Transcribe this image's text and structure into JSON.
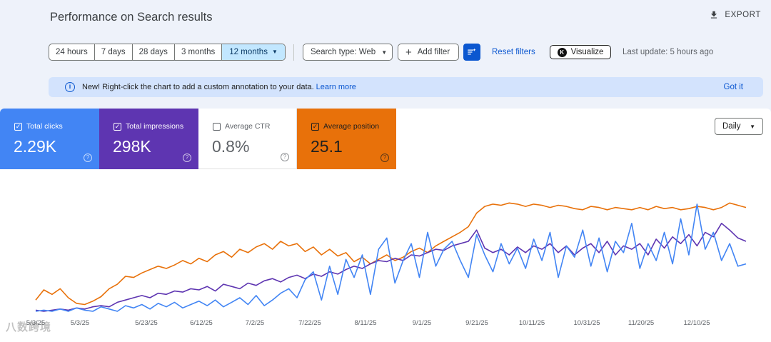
{
  "header": {
    "title": "Performance on Search results",
    "export_label": "EXPORT"
  },
  "filters": {
    "ranges": [
      "24 hours",
      "7 days",
      "28 days",
      "3 months",
      "12 months"
    ],
    "selected_range": "12 months",
    "search_type": "Search type: Web",
    "add_filter": "Add filter",
    "reset_filters": "Reset filters",
    "visualize": "Visualize",
    "last_update": "Last update: 5 hours ago"
  },
  "banner": {
    "message": "New! Right-click the chart to add a custom annotation to your data.",
    "learn_more": "Learn more",
    "got_it": "Got it"
  },
  "metrics": [
    {
      "label": "Total clicks",
      "value": "2.29K",
      "checked": true,
      "color": "#4285f4"
    },
    {
      "label": "Total impressions",
      "value": "298K",
      "checked": true,
      "color": "#5e35b1"
    },
    {
      "label": "Average CTR",
      "value": "0.8%",
      "checked": false,
      "color": "#ffffff"
    },
    {
      "label": "Average position",
      "value": "25.1",
      "checked": true,
      "color": "#e8710a"
    }
  ],
  "granularity": "Daily",
  "chart_data": {
    "type": "line",
    "x_ticks": [
      "5/3/25",
      "5/3/25",
      "5/23/25",
      "6/12/25",
      "7/2/25",
      "7/22/25",
      "8/11/25",
      "9/1/25",
      "9/21/25",
      "10/11/25",
      "10/31/25",
      "11/20/25",
      "12/10/25"
    ],
    "series": [
      {
        "name": "Average position",
        "color": "#e8710a",
        "values": [
          0.1,
          0.19,
          0.15,
          0.2,
          0.12,
          0.07,
          0.06,
          0.09,
          0.13,
          0.2,
          0.24,
          0.31,
          0.3,
          0.34,
          0.37,
          0.4,
          0.38,
          0.41,
          0.45,
          0.42,
          0.47,
          0.44,
          0.5,
          0.53,
          0.48,
          0.55,
          0.52,
          0.57,
          0.6,
          0.55,
          0.62,
          0.58,
          0.6,
          0.53,
          0.57,
          0.5,
          0.55,
          0.49,
          0.52,
          0.44,
          0.48,
          0.42,
          0.46,
          0.5,
          0.45,
          0.48,
          0.53,
          0.56,
          0.52,
          0.58,
          0.62,
          0.66,
          0.7,
          0.75,
          0.87,
          0.93,
          0.95,
          0.94,
          0.96,
          0.95,
          0.93,
          0.95,
          0.94,
          0.92,
          0.94,
          0.93,
          0.91,
          0.9,
          0.93,
          0.92,
          0.9,
          0.92,
          0.91,
          0.9,
          0.92,
          0.9,
          0.93,
          0.91,
          0.92,
          0.9,
          0.91,
          0.93,
          0.92,
          0.9,
          0.92,
          0.96,
          0.94,
          0.92
        ]
      },
      {
        "name": "Total impressions",
        "color": "#5e35b1",
        "values": [
          0.01,
          0.0,
          0.01,
          0.02,
          0.01,
          0.03,
          0.02,
          0.04,
          0.05,
          0.04,
          0.08,
          0.1,
          0.12,
          0.14,
          0.12,
          0.16,
          0.15,
          0.18,
          0.17,
          0.2,
          0.19,
          0.22,
          0.18,
          0.24,
          0.22,
          0.2,
          0.25,
          0.23,
          0.27,
          0.29,
          0.26,
          0.3,
          0.32,
          0.29,
          0.33,
          0.31,
          0.35,
          0.33,
          0.37,
          0.4,
          0.38,
          0.42,
          0.45,
          0.44,
          0.47,
          0.45,
          0.5,
          0.49,
          0.52,
          0.55,
          0.54,
          0.58,
          0.6,
          0.62,
          0.72,
          0.56,
          0.52,
          0.55,
          0.5,
          0.57,
          0.52,
          0.58,
          0.55,
          0.6,
          0.52,
          0.58,
          0.5,
          0.56,
          0.6,
          0.52,
          0.62,
          0.5,
          0.58,
          0.55,
          0.6,
          0.5,
          0.64,
          0.56,
          0.66,
          0.6,
          0.68,
          0.58,
          0.7,
          0.66,
          0.78,
          0.72,
          0.65,
          0.62
        ]
      },
      {
        "name": "Total clicks",
        "color": "#4285f4",
        "values": [
          0.0,
          0.01,
          0.0,
          0.02,
          0.0,
          0.03,
          0.01,
          0.0,
          0.04,
          0.02,
          0.0,
          0.05,
          0.03,
          0.06,
          0.02,
          0.07,
          0.04,
          0.08,
          0.03,
          0.06,
          0.09,
          0.05,
          0.1,
          0.04,
          0.08,
          0.12,
          0.06,
          0.14,
          0.05,
          0.1,
          0.16,
          0.2,
          0.12,
          0.28,
          0.35,
          0.1,
          0.4,
          0.15,
          0.46,
          0.3,
          0.5,
          0.15,
          0.55,
          0.65,
          0.25,
          0.45,
          0.6,
          0.3,
          0.7,
          0.4,
          0.55,
          0.62,
          0.45,
          0.3,
          0.68,
          0.5,
          0.35,
          0.6,
          0.42,
          0.56,
          0.38,
          0.64,
          0.45,
          0.7,
          0.3,
          0.58,
          0.48,
          0.72,
          0.4,
          0.65,
          0.35,
          0.62,
          0.52,
          0.78,
          0.38,
          0.6,
          0.45,
          0.7,
          0.42,
          0.82,
          0.5,
          0.95,
          0.55,
          0.7,
          0.45,
          0.6,
          0.4,
          0.42
        ]
      }
    ]
  },
  "watermark": "八数跨境"
}
